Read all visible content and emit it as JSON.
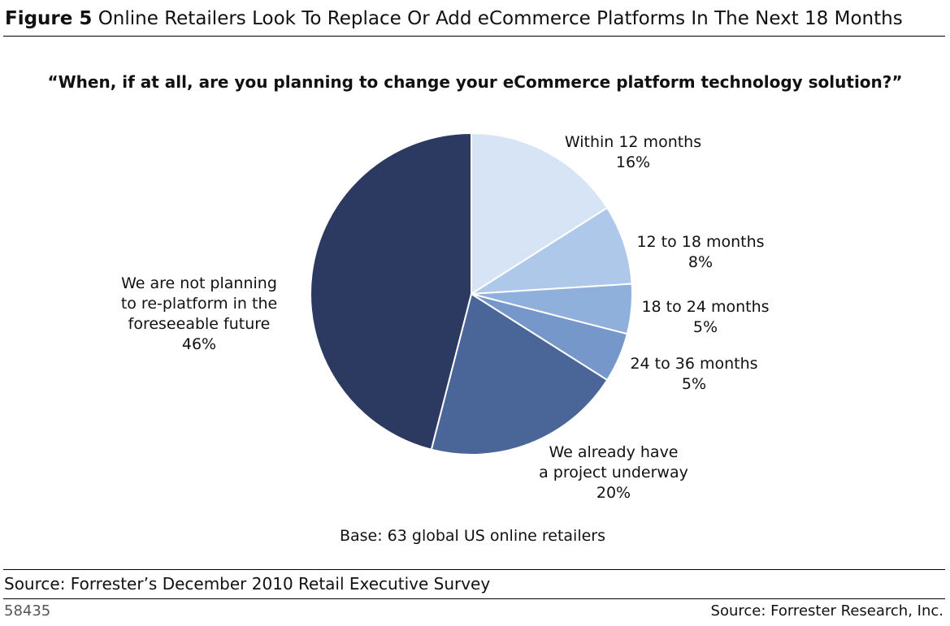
{
  "figure": {
    "number": "Figure 5",
    "title": "Online Retailers Look To Replace Or Add eCommerce Platforms In The Next 18 Months"
  },
  "chart_data": {
    "type": "pie",
    "title": "“When, if at all, are you planning to change your eCommerce platform technology solution?”",
    "slices": [
      {
        "label": "Within 12 months",
        "value": 16,
        "value_label": "16%",
        "color": "#d6e4f5"
      },
      {
        "label": "12 to 18 months",
        "value": 8,
        "value_label": "8%",
        "color": "#adc8e8"
      },
      {
        "label": "18 to 24 months",
        "value": 5,
        "value_label": "5%",
        "color": "#90b0dc"
      },
      {
        "label": "24 to 36 months",
        "value": 5,
        "value_label": "5%",
        "color": "#7597c9"
      },
      {
        "label": "We already have\na project underway",
        "value": 20,
        "value_label": "20%",
        "color": "#4a6698"
      },
      {
        "label": "We are not planning\nto re-platform in the\nforeseeable future",
        "value": 46,
        "value_label": "46%",
        "color": "#2c3a62"
      }
    ],
    "start_angle_deg": 0,
    "direction": "clockwise"
  },
  "notes": {
    "base": "Base: 63 global US online retailers",
    "source": "Source: Forrester’s December 2010 Retail Executive Survey"
  },
  "footer": {
    "id": "58435",
    "source": "Source: Forrester Research, Inc."
  }
}
